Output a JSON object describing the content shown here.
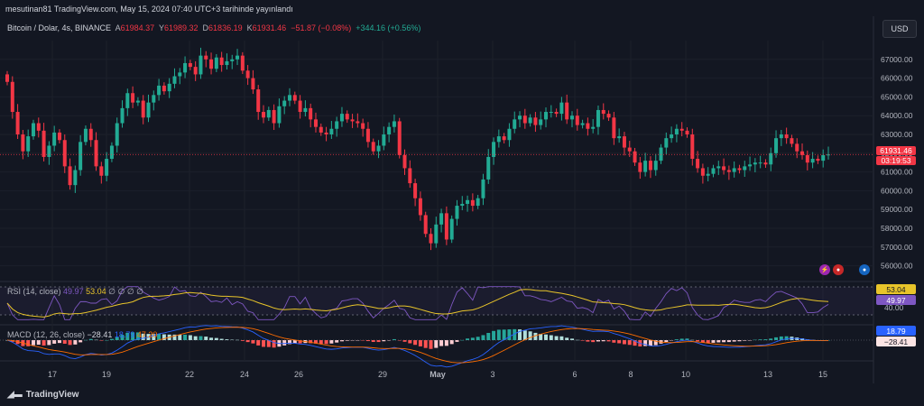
{
  "header": {
    "caption": "mesutinan81 TradingView.com, May 15, 2024 07:40 UTC+3 tarihinde yayınlandı",
    "symbol": "Bitcoin / Dolar, 4s, BINANCE",
    "open_label": "A",
    "open": "61984.37",
    "high_label": "Y",
    "high": "61989.32",
    "low_label": "D",
    "low": "61836.19",
    "close_label": "K",
    "close": "61931.46",
    "change": "−51.87 (−0.08%)",
    "change2": "+344.16 (+0.56%)",
    "currency_button": "USD"
  },
  "rsi": {
    "label": "RSI (14, close)",
    "value1": "49.97",
    "value2": "53.04",
    "placeholders": "∅ ∅ ∅ ∅",
    "badge_yellow": "53.04",
    "badge_purple": "49.97",
    "level": "40.00"
  },
  "macd": {
    "label": "MACD (12, 26, close)",
    "value1": "−28.41",
    "value2": "18.79",
    "value3": "47.20",
    "badge_blue": "18.79",
    "badge_hist": "−28.41"
  },
  "price_badge": {
    "price": "61931.46",
    "timer": "03:19:53"
  },
  "footer": {
    "brand": "TradingView"
  },
  "colors": {
    "up": "#22ab94",
    "down": "#f23645",
    "rsi_line": "#7e57c2",
    "rsi_ma": "#e8c42a",
    "macd_line": "#2962ff",
    "signal_line": "#ff6d00",
    "background": "#131722"
  },
  "chart_data": {
    "type": "candlestick",
    "title": "Bitcoin / Dolar, 4s, BINANCE",
    "y_ticks": [
      "67000.00",
      "66000.00",
      "65000.00",
      "64000.00",
      "63000.00",
      "62000.00",
      "61000.00",
      "60000.00",
      "59000.00",
      "58000.00",
      "57000.00",
      "56000.00"
    ],
    "x_ticks": [
      "17",
      "19",
      "22",
      "24",
      "26",
      "29",
      "May",
      "3",
      "6",
      "8",
      "10",
      "13",
      "15"
    ],
    "ylim": [
      55500,
      68000
    ],
    "closes": [
      65800,
      64200,
      63000,
      62100,
      62900,
      63600,
      63200,
      61800,
      62400,
      63100,
      62700,
      61300,
      60300,
      61100,
      62600,
      63300,
      62700,
      61300,
      60800,
      61700,
      62400,
      63600,
      64400,
      65200,
      64700,
      64800,
      63900,
      64700,
      65100,
      65600,
      65300,
      65700,
      66100,
      66300,
      66800,
      66600,
      66200,
      67200,
      67000,
      66500,
      67100,
      66700,
      66900,
      67000,
      67200,
      66400,
      66000,
      65400,
      64200,
      63900,
      64300,
      63600,
      64500,
      64800,
      65100,
      64800,
      64200,
      64400,
      63800,
      63400,
      63100,
      63000,
      63300,
      63700,
      64100,
      63800,
      63700,
      63600,
      63300,
      62600,
      62100,
      62400,
      63000,
      63400,
      63700,
      61900,
      61200,
      60400,
      59600,
      58700,
      57700,
      57200,
      58200,
      58800,
      57400,
      58500,
      59200,
      59300,
      59500,
      59200,
      59600,
      60600,
      61800,
      62600,
      62900,
      62700,
      63300,
      63800,
      64000,
      63600,
      63900,
      63500,
      63800,
      64200,
      64200,
      64100,
      64700,
      63800,
      64000,
      63500,
      63600,
      63300,
      63400,
      64300,
      64100,
      63900,
      62800,
      62900,
      62300,
      62100,
      61500,
      61000,
      61600,
      61100,
      61600,
      62300,
      62800,
      63000,
      63300,
      63200,
      63000,
      61700,
      61200,
      60800,
      60900,
      61200,
      61300,
      61100,
      61000,
      61200,
      61100,
      61300,
      61400,
      61500,
      61500,
      61400,
      62000,
      62800,
      63000,
      62800,
      62500,
      62100,
      61900,
      61500,
      61700,
      61600,
      61900,
      61931
    ]
  }
}
